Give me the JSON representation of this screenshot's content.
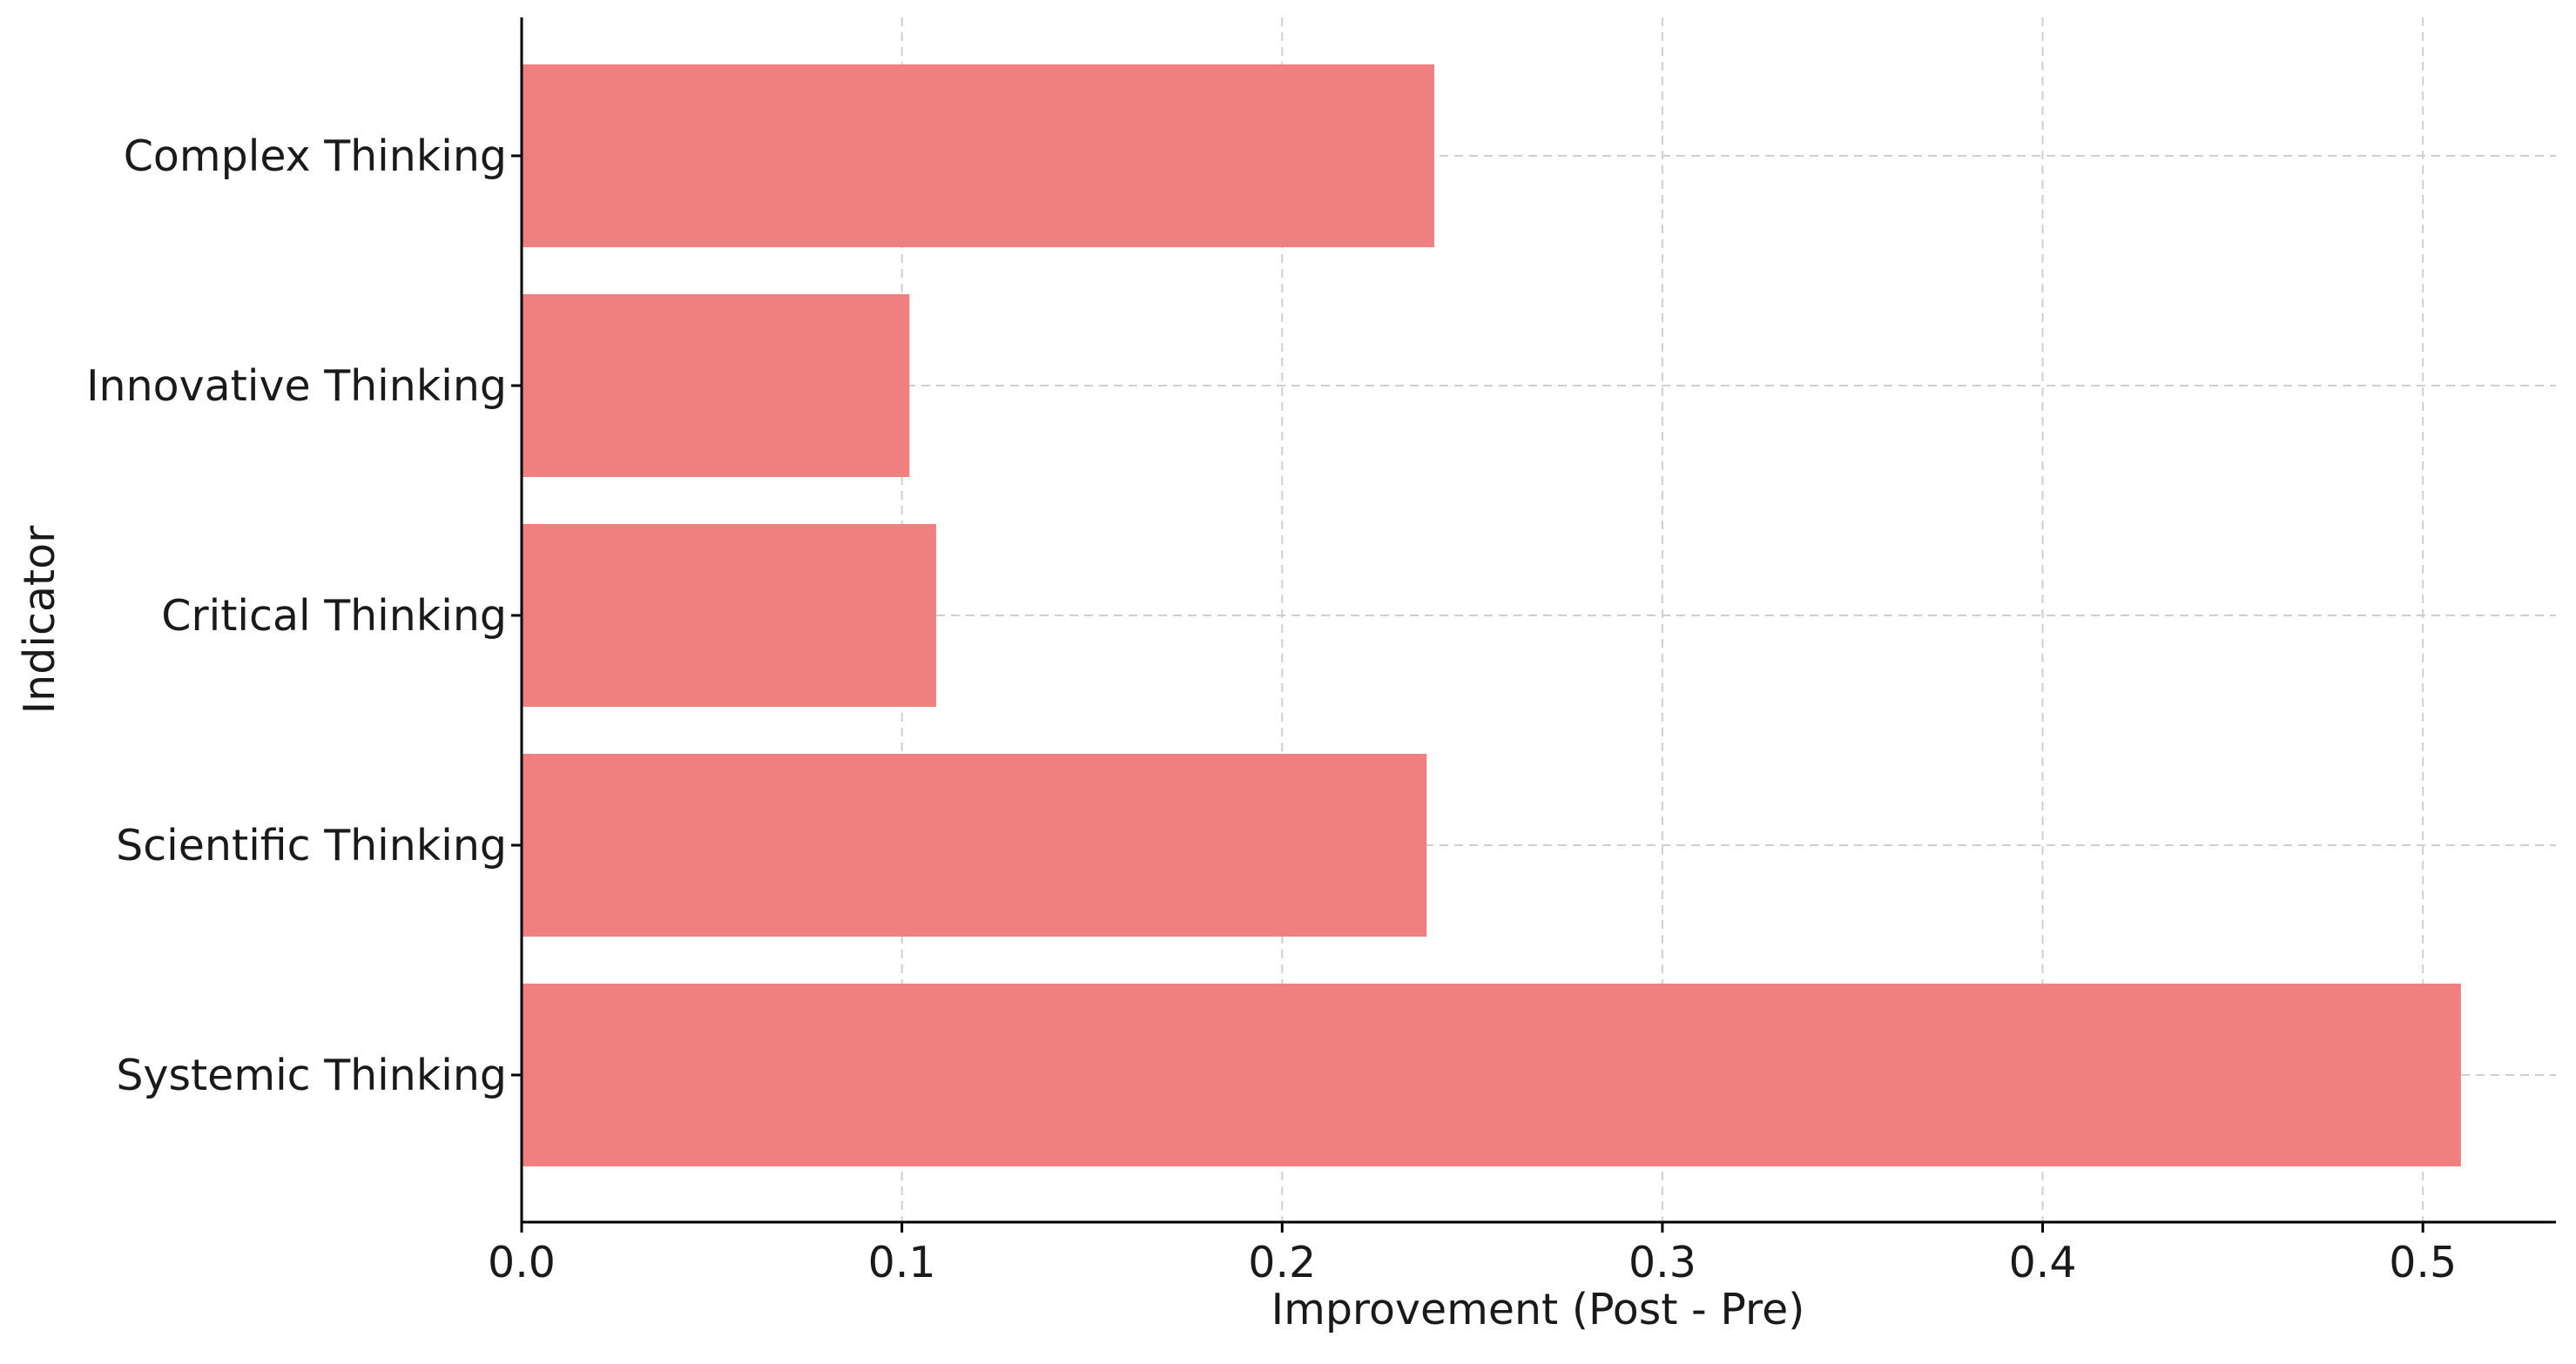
{
  "chart_data": {
    "type": "bar",
    "orientation": "horizontal",
    "title": "",
    "xlabel": "Improvement (Post - Pre)",
    "ylabel": "Indicator",
    "xlim": [
      0,
      0.535
    ],
    "xticks": [
      "0.0",
      "0.1",
      "0.2",
      "0.3",
      "0.4",
      "0.5"
    ],
    "grid": true,
    "bar_color": "#F08080",
    "categories": [
      "Complex Thinking",
      "Innovative Thinking",
      "Critical Thinking",
      "Scientific Thinking",
      "Systemic Thinking"
    ],
    "values": [
      0.24,
      0.102,
      0.109,
      0.238,
      0.51
    ]
  }
}
